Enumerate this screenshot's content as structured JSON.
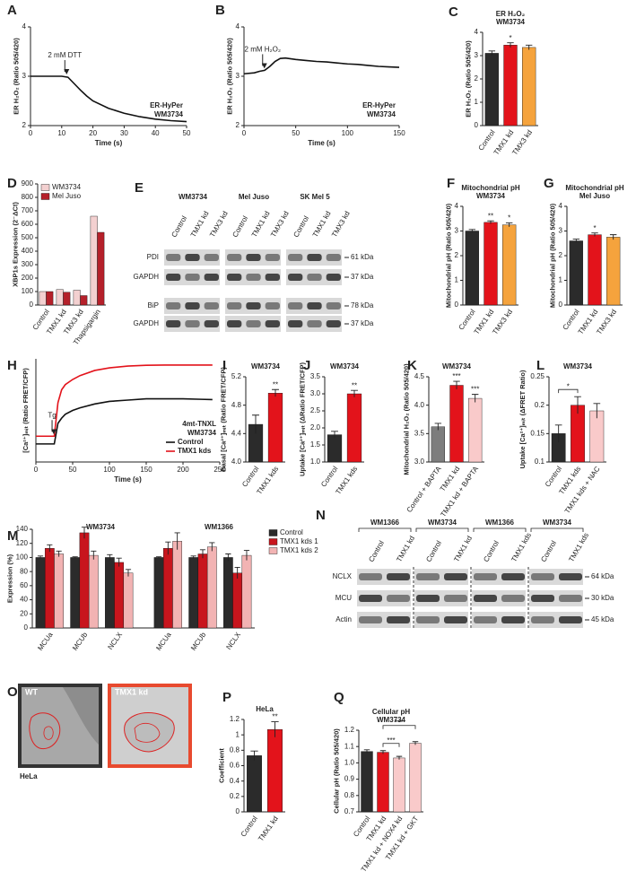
{
  "chart_data": [
    {
      "panel": "A",
      "type": "line",
      "ylabel": "ER H₂O₂ (Ratio 505/420)",
      "xlabel": "Time (s)",
      "x": [
        0,
        2,
        4,
        6,
        8,
        10,
        12,
        14,
        16,
        18,
        20,
        25,
        30,
        35,
        40,
        45,
        50
      ],
      "series": [
        {
          "color": "#111111",
          "values": [
            3.0,
            3.0,
            3.0,
            3.0,
            3.0,
            3.0,
            2.98,
            2.85,
            2.72,
            2.6,
            2.5,
            2.35,
            2.25,
            2.18,
            2.13,
            2.1,
            2.08
          ]
        }
      ],
      "xlim": [
        0,
        50
      ],
      "xticks": [
        0,
        10,
        20,
        30,
        40,
        50
      ],
      "ylim": [
        2,
        4
      ],
      "yticks": [
        2,
        3,
        4
      ],
      "annotations": [
        {
          "text": "2 mM DTT",
          "x": 11
        }
      ],
      "notes": [
        "ER-HyPer",
        "WM3734"
      ]
    },
    {
      "panel": "B",
      "type": "line",
      "ylabel": "ER H₂O₂ (Ratio 505/420)",
      "xlabel": "Time (s)",
      "x": [
        0,
        10,
        15,
        20,
        25,
        30,
        35,
        40,
        50,
        60,
        70,
        80,
        90,
        100,
        110,
        120,
        130,
        140,
        150
      ],
      "series": [
        {
          "color": "#111111",
          "values": [
            3.05,
            3.07,
            3.1,
            3.12,
            3.2,
            3.3,
            3.36,
            3.37,
            3.34,
            3.32,
            3.3,
            3.29,
            3.27,
            3.25,
            3.24,
            3.22,
            3.2,
            3.19,
            3.18
          ]
        }
      ],
      "xlim": [
        0,
        150
      ],
      "xticks": [
        0,
        50,
        100,
        150
      ],
      "ylim": [
        2,
        4
      ],
      "yticks": [
        2,
        3,
        4
      ],
      "annotations": [
        {
          "text": "2 mM H₂O₂",
          "x": 18
        }
      ],
      "notes": [
        "ER-HyPer",
        "WM3734"
      ]
    },
    {
      "panel": "C",
      "type": "bar",
      "title": "ER H₂O₂",
      "subtitle": "WM3734",
      "ylabel": "ER H₂O₂ (Ratio 505/420)",
      "categories": [
        "Control",
        "TMX1 kd",
        "TMX3 kd"
      ],
      "values": [
        3.1,
        3.45,
        3.35
      ],
      "errors": [
        0.1,
        0.1,
        0.1
      ],
      "colors": [
        "#2b2b2b",
        "#e3131b",
        "#f5a33d"
      ],
      "stars": [
        null,
        "*",
        null
      ],
      "ylim": [
        0,
        4
      ],
      "yticks": [
        0,
        1,
        2,
        3,
        4
      ]
    },
    {
      "panel": "D",
      "type": "grouped-bar",
      "ylabel": "XBP1s Expression (2⁻ΔCt)",
      "categories": [
        "Control",
        "TMX1 kd",
        "TMX3 kd",
        "Thapsigargin"
      ],
      "series": [
        {
          "name": "WM3734",
          "color": "#f3d0d0",
          "values": [
            100,
            115,
            110,
            660
          ]
        },
        {
          "name": "Mel Juso",
          "color": "#b5202a",
          "values": [
            100,
            95,
            70,
            540
          ]
        }
      ],
      "ylim": [
        0,
        900
      ],
      "yticks": [
        0,
        100,
        200,
        300,
        400,
        500,
        600,
        700,
        800,
        900
      ],
      "legend": "upper left"
    },
    {
      "panel": "F",
      "type": "bar",
      "title": "Mitochondrial pH",
      "subtitle": "WM3734",
      "ylabel": "Mitochondrial pH (Ratio 505/420)",
      "categories": [
        "Control",
        "TMX1 kd",
        "TMX3 kd"
      ],
      "values": [
        3.0,
        3.35,
        3.25
      ],
      "errors": [
        0.06,
        0.06,
        0.08
      ],
      "colors": [
        "#2b2b2b",
        "#e3131b",
        "#f5a33d"
      ],
      "stars": [
        null,
        "**",
        "*"
      ],
      "ylim": [
        0,
        4
      ],
      "yticks": [
        0,
        1,
        2,
        3,
        4
      ]
    },
    {
      "panel": "G",
      "type": "bar",
      "title": "Mitochondrial pH",
      "subtitle": "Mel Juso",
      "ylabel": "Mitochondrial pH (Ratio 505/420)",
      "categories": [
        "Control",
        "TMX1 kd",
        "TMX3 kd"
      ],
      "values": [
        2.6,
        2.85,
        2.75
      ],
      "errors": [
        0.07,
        0.07,
        0.1
      ],
      "colors": [
        "#2b2b2b",
        "#e3131b",
        "#f5a33d"
      ],
      "stars": [
        null,
        "*",
        null
      ],
      "ylim": [
        0,
        4
      ],
      "yticks": [
        0,
        1,
        2,
        3,
        4
      ]
    },
    {
      "panel": "H",
      "type": "line",
      "ylabel": "[Ca²⁺]ₘᵢₜ (Ratio FRET/CFP)",
      "xlabel": "Time (s)",
      "x": [
        0,
        10,
        20,
        25,
        30,
        35,
        40,
        50,
        60,
        80,
        100,
        125,
        150,
        175,
        200,
        225,
        240
      ],
      "series": [
        {
          "name": "Control",
          "color": "#111111",
          "values": [
            4.7,
            4.7,
            4.7,
            4.7,
            5.5,
            5.7,
            5.85,
            6.0,
            6.1,
            6.25,
            6.35,
            6.4,
            6.45,
            6.45,
            6.45,
            6.43,
            6.42
          ]
        },
        {
          "name": "TMX1 kds",
          "color": "#e3131b",
          "values": [
            5.0,
            5.0,
            5.0,
            5.0,
            6.3,
            6.8,
            7.0,
            7.2,
            7.35,
            7.55,
            7.65,
            7.72,
            7.75,
            7.76,
            7.76,
            7.76,
            7.76
          ]
        }
      ],
      "xlim": [
        0,
        250
      ],
      "xticks": [
        0,
        50,
        100,
        150,
        200,
        250
      ],
      "ylim": [
        4,
        8
      ],
      "yticks": [],
      "annotations": [
        {
          "text": "Tg",
          "x": 22
        }
      ],
      "notes": [
        "4mt-TNXL",
        "WM3734"
      ],
      "legend": "lower right"
    },
    {
      "panel": "I",
      "type": "bar",
      "title": "WM3734",
      "ylabel": "Basal [Ca²⁺]ₘᵢₜ (Ratio FRET/CFP)",
      "categories": [
        "Control",
        "TMX1 kds"
      ],
      "values": [
        4.53,
        4.97
      ],
      "errors": [
        0.13,
        0.05
      ],
      "colors": [
        "#2b2b2b",
        "#e3131b"
      ],
      "stars": [
        null,
        "**"
      ],
      "ylim": [
        4,
        5.2
      ],
      "yticks": [
        {
          "value": 4,
          "label": "4.0"
        },
        4.4,
        4.8,
        5.2
      ]
    },
    {
      "panel": "J",
      "type": "bar",
      "title": "WM3734",
      "ylabel": "Uptake [Ca²⁺]ₘᵢₜ (ΔRatio FRET/CFP)",
      "categories": [
        "Control",
        "TMX1 kds"
      ],
      "values": [
        1.8,
        3.0
      ],
      "errors": [
        0.1,
        0.1
      ],
      "colors": [
        "#2b2b2b",
        "#e3131b"
      ],
      "stars": [
        null,
        "**"
      ],
      "ylim": [
        1,
        3.5
      ],
      "yticks": [
        {
          "value": 1,
          "label": "1.0"
        },
        1.5,
        {
          "value": 2,
          "label": "2.0"
        },
        2.5,
        {
          "value": 3,
          "label": "3.0"
        },
        3.5
      ]
    },
    {
      "panel": "K",
      "type": "bar",
      "title": "WM3734",
      "ylabel": "Mitochondrial H₂O₂ (Ratio 505/420)",
      "categories": [
        "Control + BAPTA",
        "TMX1 kd",
        "TMX1 kd + BAPTA"
      ],
      "values": [
        3.62,
        4.35,
        4.12
      ],
      "errors": [
        0.06,
        0.07,
        0.07
      ],
      "colors": [
        "#7d7d7d",
        "#e3131b",
        "#f9caca"
      ],
      "stars": [
        null,
        "***",
        "***"
      ],
      "ylim": [
        3,
        4.5
      ],
      "yticks": [
        {
          "value": 3,
          "label": "3.0"
        },
        3.5,
        {
          "value": 4,
          "label": "4.0"
        },
        4.5
      ]
    },
    {
      "panel": "L",
      "type": "bar",
      "title": "WM3734",
      "ylabel": "Uptake [Ca²⁺]ₘᵢₜ (ΔFRET Ratio)",
      "categories": [
        "Control",
        "TMX1 kds",
        "TMX1 kds + NAC"
      ],
      "values": [
        0.15,
        0.2,
        0.19
      ],
      "errors": [
        0.015,
        0.015,
        0.013
      ],
      "colors": [
        "#2b2b2b",
        "#e3131b",
        "#f9caca"
      ],
      "significance": [
        {
          "categories": [
            "Control",
            "TMX1 kds"
          ],
          "label": "*"
        }
      ],
      "ylim": [
        0.1,
        0.25
      ],
      "yticks": [
        0.1,
        0.15,
        0.2,
        0.25
      ]
    },
    {
      "panel": "M",
      "type": "grouped-bar",
      "ylabel": "Expression (%)",
      "groups": [
        {
          "label": "WM3734"
        },
        {
          "label": "WM1366"
        }
      ],
      "categories": [
        "MCUa",
        "MCUb",
        "NCLX",
        "MCUa",
        "MCUb",
        "NCLX"
      ],
      "series": [
        {
          "name": "Control",
          "color": "#2b2b2b",
          "values": [
            100,
            100,
            100,
            100,
            100,
            100
          ],
          "errors": [
            2,
            1,
            4,
            1,
            2,
            5
          ]
        },
        {
          "name": "TMX1 kds 1",
          "color": "#c8151d",
          "values": [
            113,
            135,
            93,
            113,
            105,
            78
          ],
          "errors": [
            5,
            8,
            6,
            9,
            6,
            8
          ]
        },
        {
          "name": "TMX1 kds 2",
          "color": "#f2b3b3",
          "values": [
            105,
            103,
            78,
            123,
            115,
            103
          ],
          "errors": [
            4,
            6,
            5,
            12,
            6,
            7
          ]
        }
      ],
      "ylim": [
        0,
        140
      ],
      "yticks": [
        0,
        20,
        40,
        60,
        80,
        100,
        120,
        140
      ],
      "legend": "right"
    },
    {
      "panel": "P",
      "type": "bar",
      "title": "HeLa",
      "ylabel": "Coefficient",
      "categories": [
        "Control",
        "TMX1 kd"
      ],
      "values": [
        0.73,
        1.07
      ],
      "errors": [
        0.06,
        0.1
      ],
      "colors": [
        "#2b2b2b",
        "#e3131b"
      ],
      "stars": [
        null,
        "**"
      ],
      "ylim": [
        0,
        1.2
      ],
      "yticks": [
        0,
        0.2,
        0.4,
        0.6,
        0.8,
        1,
        1.2
      ]
    },
    {
      "panel": "Q",
      "type": "bar",
      "title": "Cellular pH",
      "subtitle": "WM3734",
      "ylabel": "Cellular pH (Ratio 505/420)",
      "categories": [
        "Control",
        "TMX1 kd",
        "TMX1 kd + NOX4 kd",
        "TMX1 kd + GKT"
      ],
      "values": [
        1.07,
        1.065,
        1.03,
        1.12
      ],
      "errors": [
        0.01,
        0.01,
        0.01,
        0.01
      ],
      "colors": [
        "#2b2b2b",
        "#e3131b",
        "#f9caca",
        "#f9caca"
      ],
      "significance": [
        {
          "categories": [
            "TMX1 kd",
            "TMX1 kd + NOX4 kd"
          ],
          "label": "***"
        },
        {
          "categories": [
            "TMX1 kd",
            "TMX1 kd + GKT"
          ],
          "label": "***"
        }
      ],
      "ylim": [
        0.7,
        1.2
      ],
      "yticks": [
        0.7,
        0.8,
        0.9,
        {
          "value": 1,
          "label": "1.0"
        },
        1.1,
        1.2
      ]
    }
  ],
  "blots": [
    {
      "panel": "E",
      "groups": [
        {
          "label": "WM3734",
          "lanes": [
            "Control",
            "TMX1 kd",
            "TMX3 kd"
          ]
        },
        {
          "label": "Mel Juso",
          "lanes": [
            "Control",
            "TMX1 kd",
            "TMX3 kd"
          ]
        },
        {
          "label": "SK Mel 5",
          "lanes": [
            "Control",
            "TMX1 kd",
            "TMX3 kd"
          ]
        }
      ],
      "rows": [
        {
          "label": "PDI",
          "marker": "61 kDa"
        },
        {
          "label": "GAPDH",
          "marker": "37 kDa"
        },
        {
          "label": "BiP",
          "marker": "78 kDa"
        },
        {
          "label": "GAPDH",
          "marker": "37 kDa"
        }
      ]
    },
    {
      "panel": "N",
      "groups": [
        {
          "label": "WM1366",
          "lanes": [
            "Control",
            "TMX1 kd"
          ]
        },
        {
          "label": "WM3734",
          "lanes": [
            "Control",
            "TMX1 kd"
          ]
        },
        {
          "label": "WM1366",
          "lanes": [
            "Control",
            "TMX1 kds"
          ]
        },
        {
          "label": "WM3734",
          "lanes": [
            "Control",
            "TMX1 kds"
          ]
        }
      ],
      "rows": [
        {
          "label": "NCLX",
          "marker": "64 kDa"
        },
        {
          "label": "MCU",
          "marker": "30 kDa"
        },
        {
          "label": "Actin",
          "marker": "45 kDa"
        }
      ]
    }
  ],
  "image": {
    "panel": "O",
    "tiles": [
      {
        "label": "WT"
      },
      {
        "label": "TMX1 kd"
      }
    ],
    "caption": "HeLa"
  }
}
